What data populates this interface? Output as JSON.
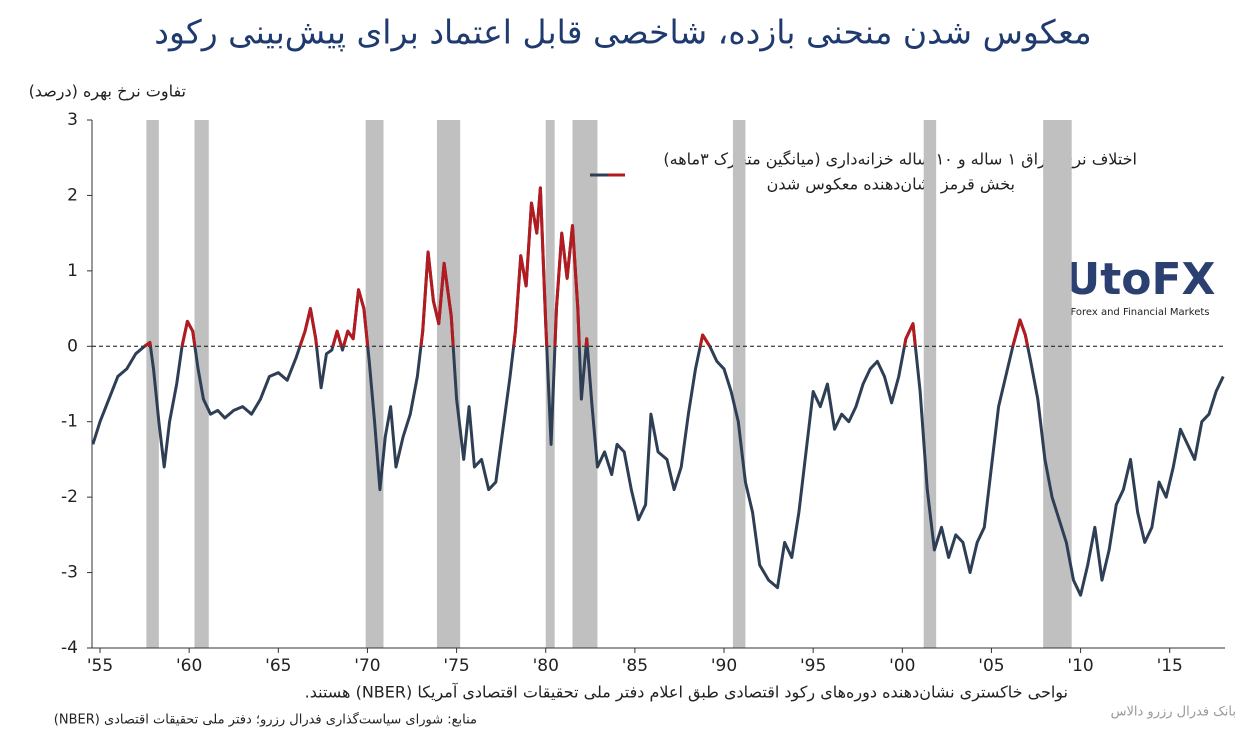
{
  "chart_data": {
    "type": "line",
    "title": "معکوس شدن منحنی بازده، شاخصی قابل اعتماد برای پیش‌بینی رکود",
    "y_label": "تفاوت نرخ بهره (درصد)",
    "legend": [
      "اختلاف نرخ اوراق ۱ ساله و ۱۰ ساله خزانه‌داری (میانگین متحرک ۳ماهه)",
      "بخش قرمز نشان‌دهنده معکوس شدن"
    ],
    "note": "نواحی خاکستری نشان‌دهنده دوره‌های رکود اقتصادی طبق اعلام دفتر ملی تحقیقات اقتصادی آمریکا (NBER) هستند.",
    "source": "منابع: شورای سیاست‌گذاری فدرال رزرو؛ دفتر ملی تحقیقات اقتصادی (NBER)",
    "credit": "بانک فدرال رزرو دالاس",
    "logo": [
      "UtoFX",
      "Forex and Financial Markets"
    ],
    "color": "#2e3f55",
    "inversion_color": "#b31b20",
    "recession_color": "#c0c0c0",
    "xlim": [
      1954.55,
      2018.1
    ],
    "ylim": [
      -4,
      3
    ],
    "xticks": [
      {
        "value": 1955,
        "label": "'55"
      },
      {
        "value": 1960,
        "label": "'60"
      },
      {
        "value": 1965,
        "label": "'65"
      },
      {
        "value": 1970,
        "label": "'70"
      },
      {
        "value": 1975,
        "label": "'75"
      },
      {
        "value": 1980,
        "label": "'80"
      },
      {
        "value": 1985,
        "label": "'85"
      },
      {
        "value": 1990,
        "label": "'90"
      },
      {
        "value": 1995,
        "label": "'95"
      },
      {
        "value": 2000,
        "label": "'00"
      },
      {
        "value": 2005,
        "label": "'05"
      },
      {
        "value": 2010,
        "label": "'10"
      },
      {
        "value": 2015,
        "label": "'15"
      }
    ],
    "yticks": [
      -4,
      -3,
      -2,
      -1,
      0,
      1,
      2,
      3
    ],
    "recessions": [
      [
        1957.6,
        1958.3
      ],
      [
        1960.3,
        1961.1
      ],
      [
        1969.9,
        1970.9
      ],
      [
        1973.9,
        1975.2
      ],
      [
        1980.0,
        1980.5
      ],
      [
        1981.5,
        1982.9
      ],
      [
        1990.5,
        1991.2
      ],
      [
        2001.2,
        2001.9
      ],
      [
        2007.9,
        2009.5
      ]
    ],
    "x": [
      1954.6,
      1955.0,
      1955.5,
      1956.0,
      1956.5,
      1957.0,
      1957.5,
      1957.8,
      1958.0,
      1958.3,
      1958.6,
      1958.9,
      1959.3,
      1959.6,
      1959.9,
      1960.2,
      1960.5,
      1960.8,
      1961.2,
      1961.6,
      1962.0,
      1962.5,
      1963.0,
      1963.5,
      1964.0,
      1964.5,
      1965.0,
      1965.5,
      1966.0,
      1966.5,
      1966.8,
      1967.1,
      1967.4,
      1967.7,
      1968.0,
      1968.3,
      1968.6,
      1968.9,
      1969.2,
      1969.5,
      1969.8,
      1970.1,
      1970.4,
      1970.7,
      1971.0,
      1971.3,
      1971.6,
      1972.0,
      1972.4,
      1972.8,
      1973.1,
      1973.4,
      1973.7,
      1974.0,
      1974.3,
      1974.7,
      1975.0,
      1975.4,
      1975.7,
      1976.0,
      1976.4,
      1976.8,
      1977.2,
      1977.6,
      1978.0,
      1978.3,
      1978.6,
      1978.9,
      1979.2,
      1979.5,
      1979.7,
      1980.0,
      1980.3,
      1980.6,
      1980.9,
      1981.2,
      1981.5,
      1981.8,
      1982.0,
      1982.3,
      1982.6,
      1982.9,
      1983.3,
      1983.7,
      1984.0,
      1984.4,
      1984.8,
      1985.2,
      1985.6,
      1985.9,
      1986.3,
      1986.8,
      1987.2,
      1987.6,
      1988.0,
      1988.4,
      1988.8,
      1989.2,
      1989.6,
      1990.0,
      1990.4,
      1990.8,
      1991.2,
      1991.6,
      1992.0,
      1992.5,
      1993.0,
      1993.4,
      1993.8,
      1994.2,
      1994.6,
      1995.0,
      1995.4,
      1995.8,
      1996.2,
      1996.6,
      1997.0,
      1997.4,
      1997.8,
      1998.2,
      1998.6,
      1999.0,
      1999.4,
      1999.8,
      2000.2,
      2000.6,
      2001.0,
      2001.4,
      2001.8,
      2002.2,
      2002.6,
      2003.0,
      2003.4,
      2003.8,
      2004.2,
      2004.6,
      2005.0,
      2005.4,
      2005.8,
      2006.2,
      2006.6,
      2006.9,
      2007.2,
      2007.6,
      2008.0,
      2008.4,
      2008.8,
      2009.2,
      2009.6,
      2010.0,
      2010.4,
      2010.8,
      2011.2,
      2011.6,
      2012.0,
      2012.4,
      2012.8,
      2013.2,
      2013.6,
      2014.0,
      2014.4,
      2014.8,
      2015.2,
      2015.6,
      2016.0,
      2016.4,
      2016.8,
      2017.2,
      2017.6,
      2018.0
    ],
    "values": [
      -1.3,
      -1.0,
      -0.7,
      -0.4,
      -0.3,
      -0.1,
      0.0,
      0.05,
      -0.3,
      -1.0,
      -1.6,
      -1.0,
      -0.5,
      0.0,
      0.33,
      0.2,
      -0.3,
      -0.7,
      -0.9,
      -0.85,
      -0.95,
      -0.85,
      -0.8,
      -0.9,
      -0.7,
      -0.4,
      -0.35,
      -0.45,
      -0.15,
      0.2,
      0.5,
      0.1,
      -0.55,
      -0.1,
      -0.05,
      0.2,
      -0.05,
      0.2,
      0.1,
      0.75,
      0.5,
      -0.2,
      -1.0,
      -1.9,
      -1.2,
      -0.8,
      -1.6,
      -1.2,
      -0.9,
      -0.4,
      0.2,
      1.25,
      0.6,
      0.3,
      1.1,
      0.4,
      -0.7,
      -1.5,
      -0.8,
      -1.6,
      -1.5,
      -1.9,
      -1.8,
      -1.1,
      -0.4,
      0.2,
      1.2,
      0.8,
      1.9,
      1.5,
      2.1,
      0.3,
      -1.3,
      0.5,
      1.5,
      0.9,
      1.6,
      0.5,
      -0.7,
      0.1,
      -0.8,
      -1.6,
      -1.4,
      -1.7,
      -1.3,
      -1.4,
      -1.9,
      -2.3,
      -2.1,
      -0.9,
      -1.4,
      -1.5,
      -1.9,
      -1.6,
      -0.9,
      -0.3,
      0.15,
      0.0,
      -0.2,
      -0.3,
      -0.6,
      -1.0,
      -1.8,
      -2.2,
      -2.9,
      -3.1,
      -3.2,
      -2.6,
      -2.8,
      -2.2,
      -1.4,
      -0.6,
      -0.8,
      -0.5,
      -1.1,
      -0.9,
      -1.0,
      -0.8,
      -0.5,
      -0.3,
      -0.2,
      -0.4,
      -0.75,
      -0.4,
      0.1,
      0.3,
      -0.6,
      -1.9,
      -2.7,
      -2.4,
      -2.8,
      -2.5,
      -2.6,
      -3.0,
      -2.6,
      -2.4,
      -1.6,
      -0.8,
      -0.4,
      0.0,
      0.35,
      0.15,
      -0.2,
      -0.7,
      -1.5,
      -2.0,
      -2.3,
      -2.6,
      -3.1,
      -3.3,
      -2.9,
      -2.4,
      -3.1,
      -2.7,
      -2.1,
      -1.9,
      -1.5,
      -2.2,
      -2.6,
      -2.4,
      -1.8,
      -2.0,
      -1.6,
      -1.1,
      -1.3,
      -1.5,
      -1.0,
      -0.9,
      -0.6,
      -0.4
    ]
  }
}
